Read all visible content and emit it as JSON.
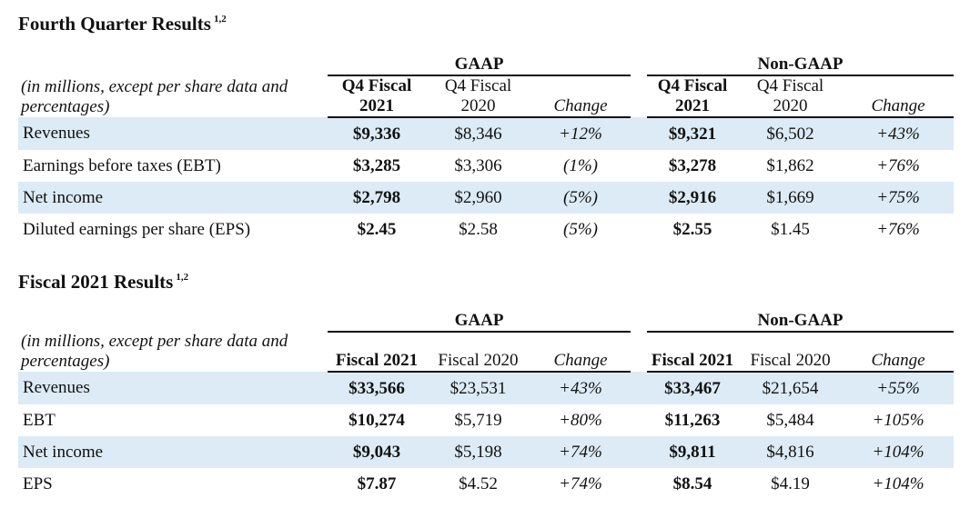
{
  "q4": {
    "title": "Fourth Quarter Results",
    "footnote": "1,2",
    "gaap_label": "GAAP",
    "nongaap_label": "Non-GAAP",
    "label_header": "(in millions, except per share data and percentages)",
    "col1": "Q4 Fiscal 2021",
    "col2": "Q4 Fiscal 2020",
    "col3": "Change",
    "col4": "Q4 Fiscal 2021",
    "col5": "Q4 Fiscal 2020",
    "col6": "Change",
    "rows": [
      {
        "label": "Revenues",
        "g21": "$9,336",
        "g20": "$8,346",
        "gchg": "+12%",
        "n21": "$9,321",
        "n20": "$6,502",
        "nchg": "+43%"
      },
      {
        "label": "Earnings before taxes (EBT)",
        "g21": "$3,285",
        "g20": "$3,306",
        "gchg": "(1%)",
        "n21": "$3,278",
        "n20": "$1,862",
        "nchg": "+76%"
      },
      {
        "label": "Net income",
        "g21": "$2,798",
        "g20": "$2,960",
        "gchg": "(5%)",
        "n21": "$2,916",
        "n20": "$1,669",
        "nchg": "+75%"
      },
      {
        "label": "Diluted earnings per share (EPS)",
        "g21": "$2.45",
        "g20": "$2.58",
        "gchg": "(5%)",
        "n21": "$2.55",
        "n20": "$1.45",
        "nchg": "+76%"
      }
    ]
  },
  "fy": {
    "title": "Fiscal 2021 Results",
    "footnote": "1,2",
    "gaap_label": "GAAP",
    "nongaap_label": "Non-GAAP",
    "label_header": "(in millions, except per share data and percentages)",
    "col1": "Fiscal 2021",
    "col2": "Fiscal 2020",
    "col3": "Change",
    "col4": "Fiscal 2021",
    "col5": "Fiscal 2020",
    "col6": "Change",
    "rows": [
      {
        "label": "Revenues",
        "g21": "$33,566",
        "g20": "$23,531",
        "gchg": "+43%",
        "n21": "$33,467",
        "n20": "$21,654",
        "nchg": "+55%"
      },
      {
        "label": "EBT",
        "g21": "$10,274",
        "g20": "$5,719",
        "gchg": "+80%",
        "n21": "$11,263",
        "n20": "$5,484",
        "nchg": "+105%"
      },
      {
        "label": "Net income",
        "g21": "$9,043",
        "g20": "$5,198",
        "gchg": "+74%",
        "n21": "$9,811",
        "n20": "$4,816",
        "nchg": "+104%"
      },
      {
        "label": "EPS",
        "g21": "$7.87",
        "g20": "$4.52",
        "gchg": "+74%",
        "n21": "$8.54",
        "n20": "$4.19",
        "nchg": "+104%"
      }
    ]
  }
}
